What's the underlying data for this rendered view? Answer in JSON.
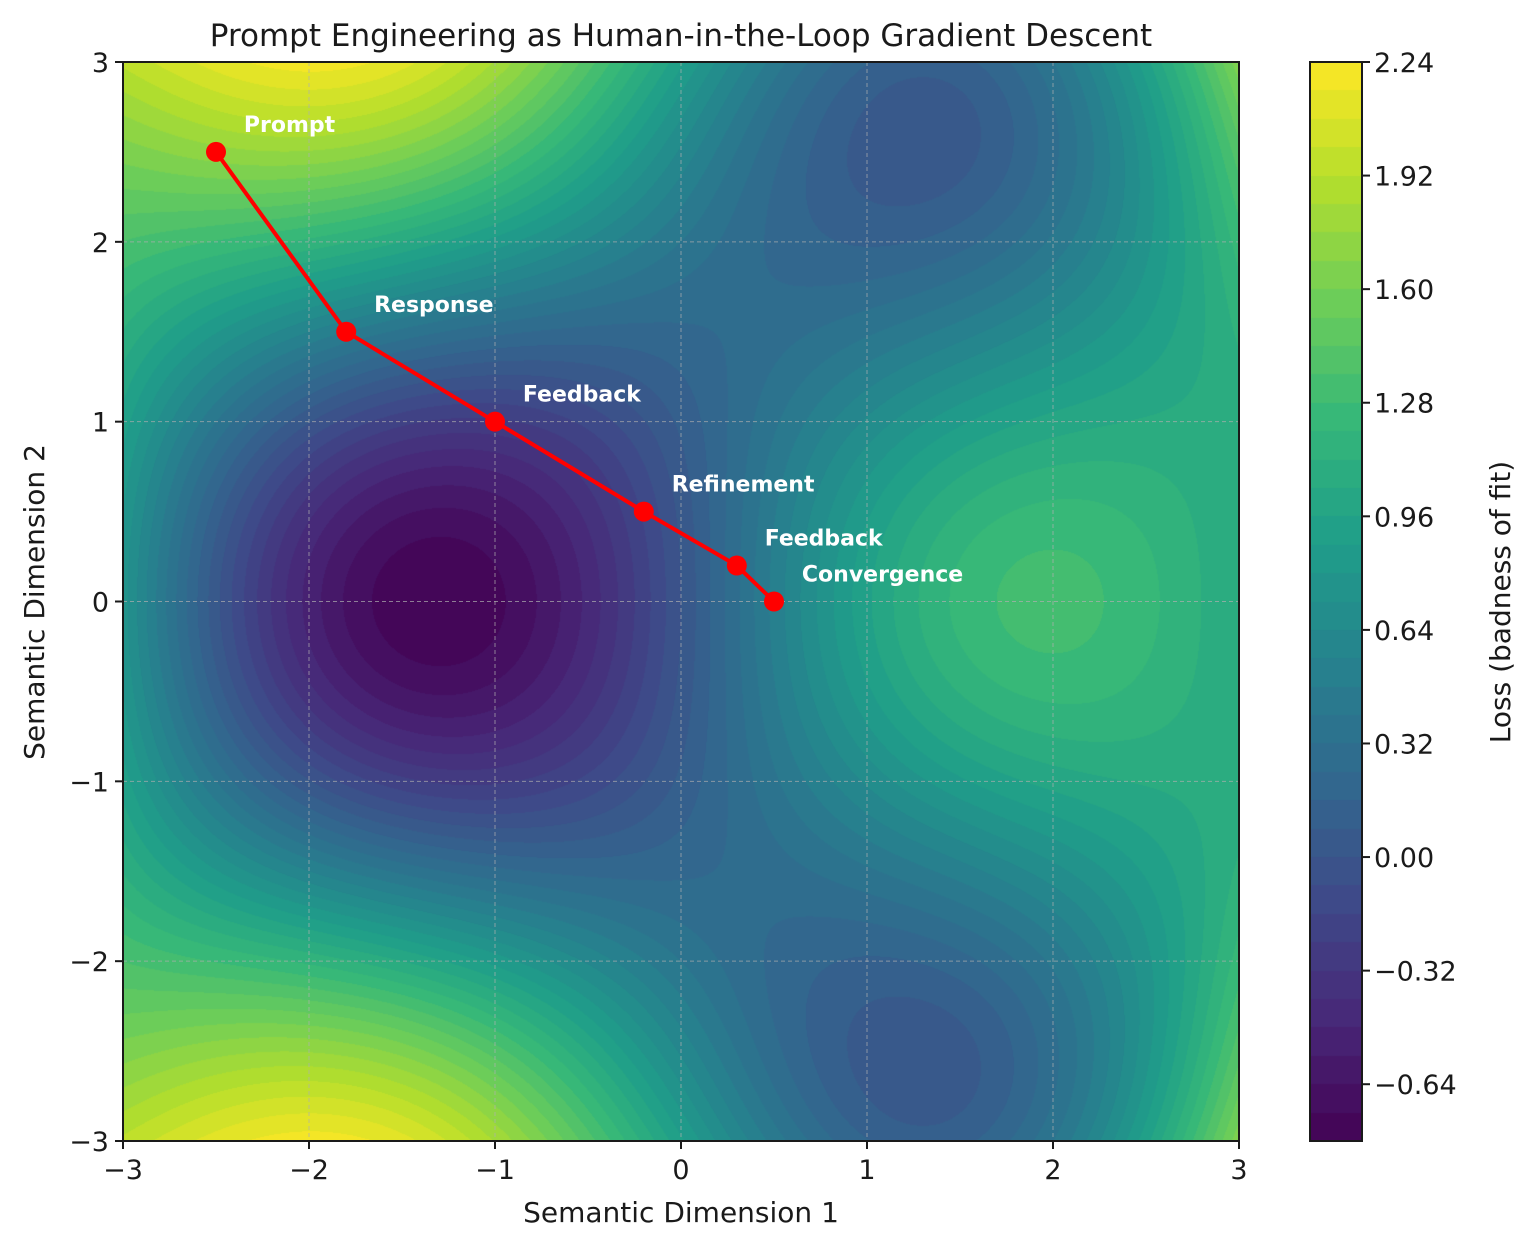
{
  "chart_data": {
    "type": "contour",
    "title": "Prompt Engineering as Human-in-the-Loop Gradient Descent",
    "xlabel": "Semantic Dimension 1",
    "ylabel": "Semantic Dimension 2",
    "xlim": [
      -3,
      3
    ],
    "ylim": [
      -3,
      3
    ],
    "xticks": [
      "−3",
      "−2",
      "−1",
      "0",
      "1",
      "2",
      "3"
    ],
    "yticks": [
      "−3",
      "−2",
      "−1",
      "0",
      "1",
      "2",
      "3"
    ],
    "grid": true,
    "colormap": "viridis",
    "colorbar": {
      "label": "Loss (badness of fit)",
      "range": [
        -0.8,
        2.24
      ],
      "level_step": 0.08,
      "ticks": [
        "−0.64",
        "−0.32",
        "0.00",
        "0.32",
        "0.64",
        "0.96",
        "1.28",
        "1.60",
        "1.92",
        "2.24"
      ],
      "tick_values": [
        -0.64,
        -0.32,
        0.0,
        0.32,
        0.64,
        0.96,
        1.28,
        1.6,
        1.92,
        2.24
      ]
    },
    "path": {
      "color": "#ff0000",
      "points": [
        {
          "x": -2.5,
          "y": 2.5,
          "label": "Prompt"
        },
        {
          "x": -1.8,
          "y": 1.5,
          "label": "Response"
        },
        {
          "x": -1.0,
          "y": 1.0,
          "label": "Feedback"
        },
        {
          "x": -0.2,
          "y": 0.5,
          "label": "Refinement"
        },
        {
          "x": 0.3,
          "y": 0.2,
          "label": "Feedback"
        },
        {
          "x": 0.5,
          "y": 0.0,
          "label": "Convergence"
        }
      ]
    }
  }
}
